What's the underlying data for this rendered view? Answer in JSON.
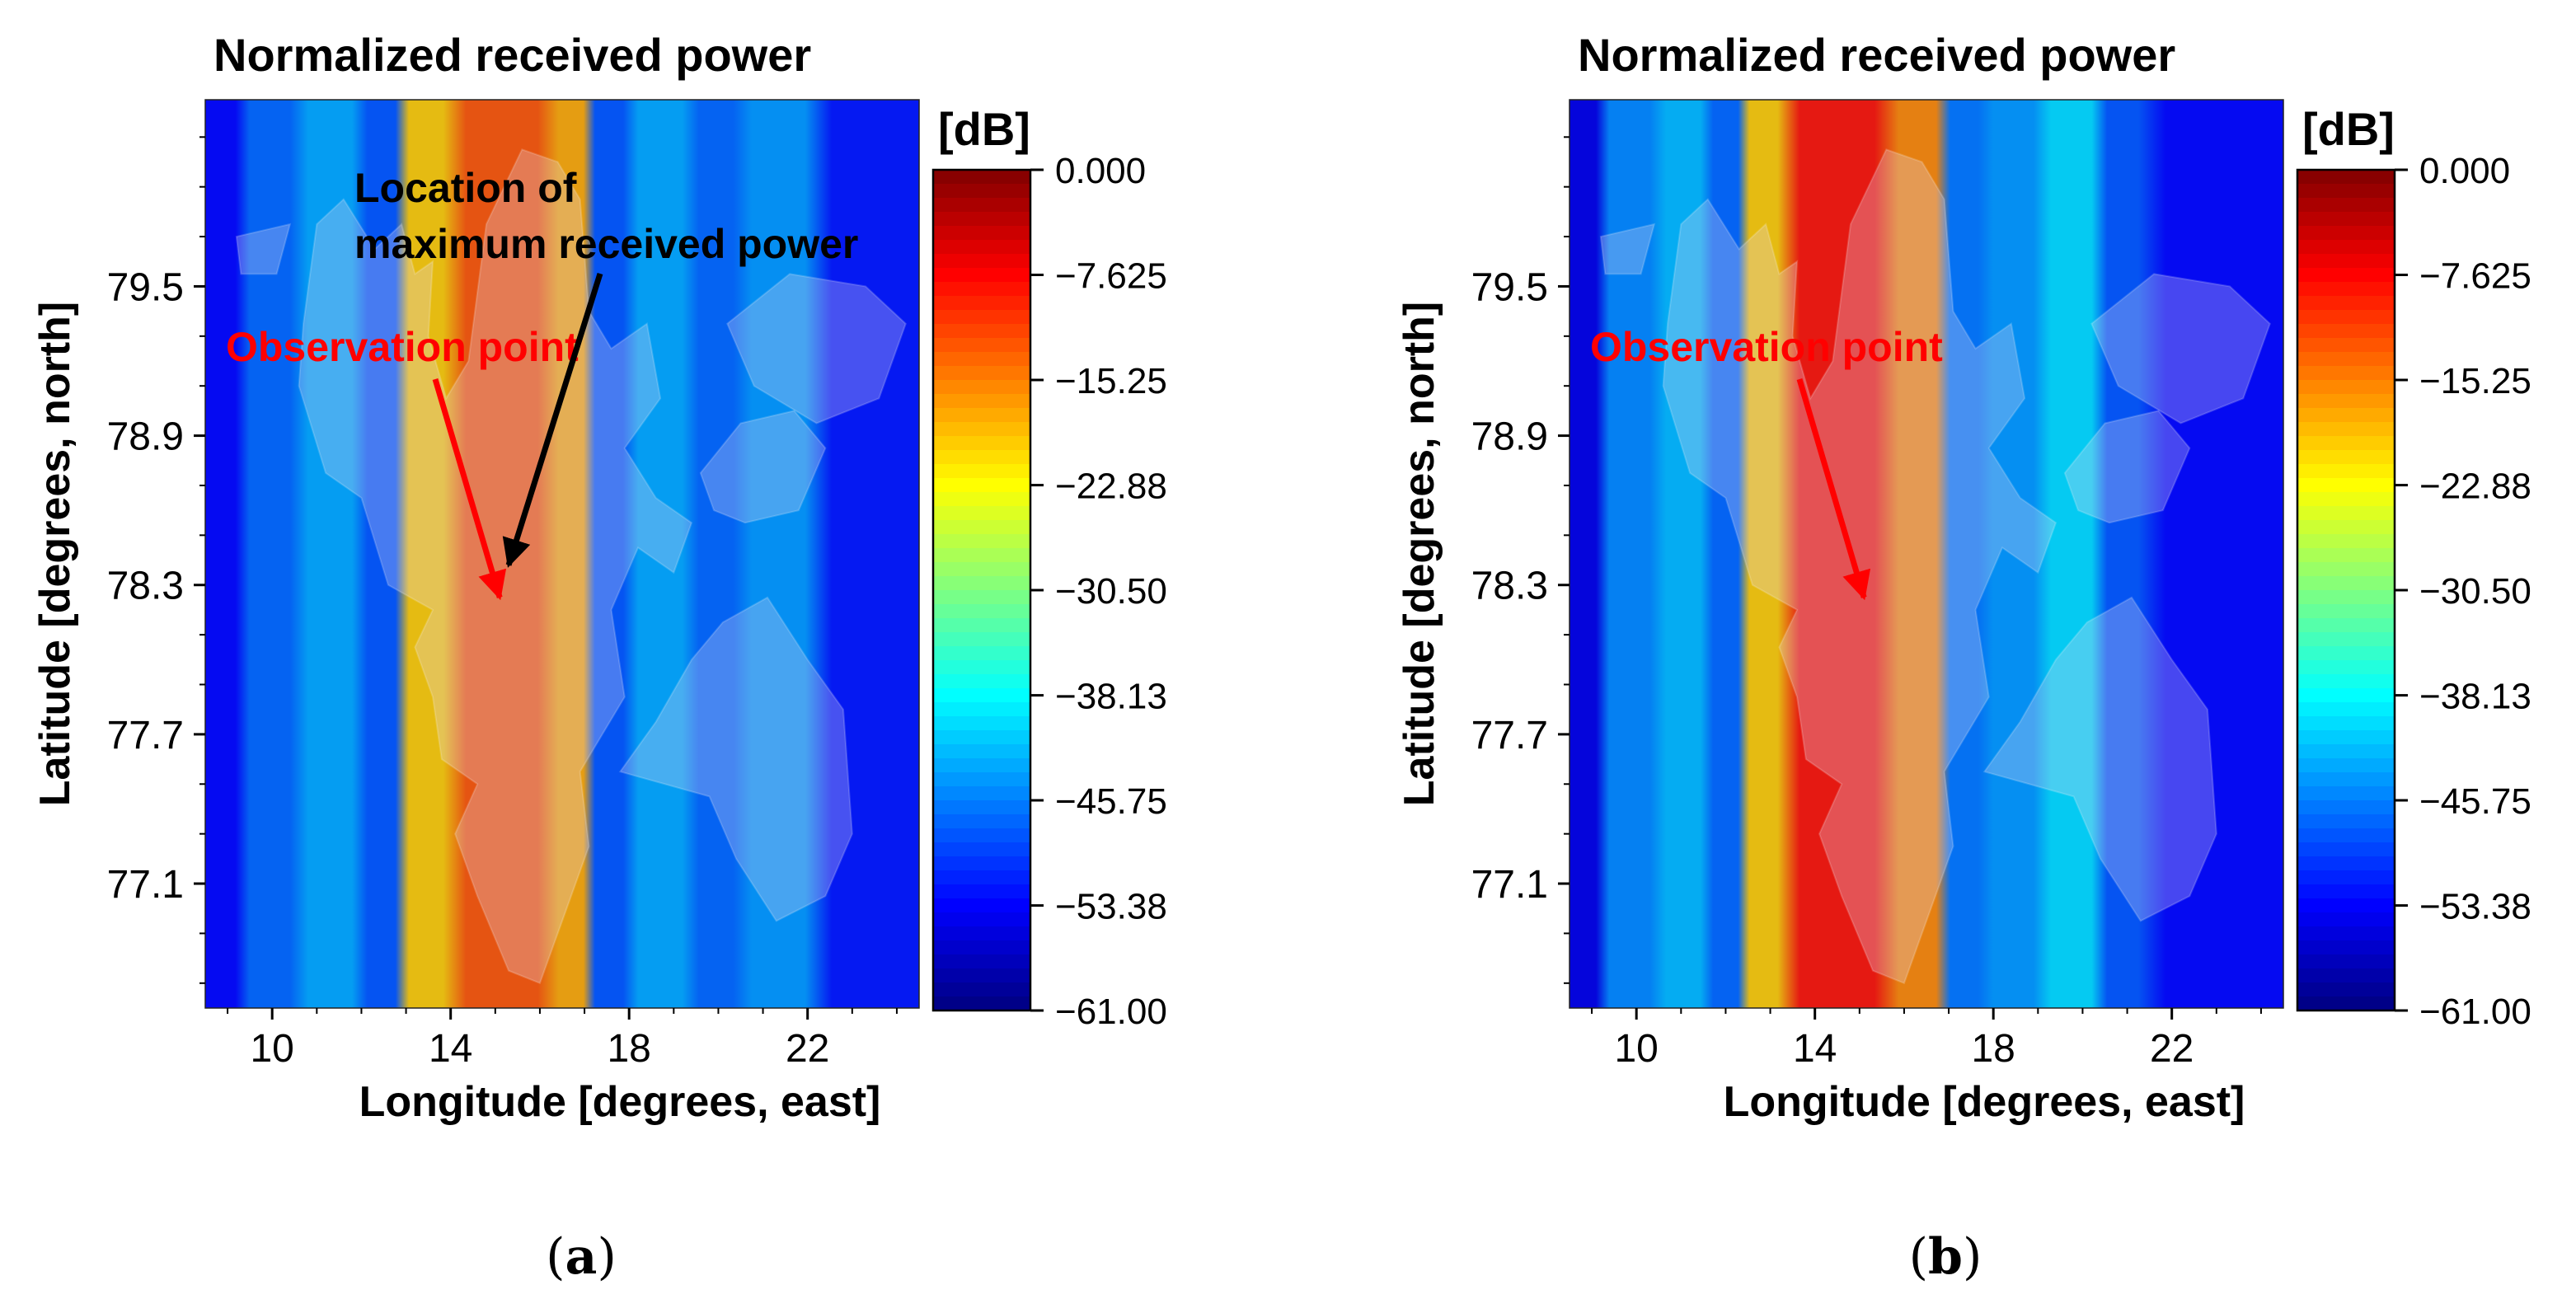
{
  "chart_data": [
    {
      "type": "heatmap",
      "panel_label": "(a)",
      "caption_open": "(",
      "caption_letter": "a",
      "caption_close": ")",
      "title": "Normalized received power",
      "xlabel": "Longitude [degrees, east]",
      "ylabel": "Latitude [degrees, north]",
      "xlim": [
        8.5,
        24.5
      ],
      "ylim": [
        76.6,
        80.25
      ],
      "xticks": [
        10,
        14,
        18,
        22
      ],
      "xtick_labels": [
        "10",
        "14",
        "18",
        "22"
      ],
      "yticks": [
        77.1,
        77.7,
        78.3,
        78.9,
        79.5
      ],
      "ytick_labels": [
        "77.1",
        "77.7",
        "78.3",
        "78.9",
        "79.5"
      ],
      "colorbar": {
        "unit": "[dB]",
        "min": -61.0,
        "max": 0.0,
        "ticks": [
          0.0,
          -7.625,
          -15.25,
          -22.88,
          -30.5,
          -38.13,
          -45.75,
          -53.38,
          -61.0
        ],
        "tick_labels": [
          "0.000",
          "−7.625",
          "−15.25",
          "−22.88",
          "−30.50",
          "−38.13",
          "−45.75",
          "−53.38",
          "−61.00"
        ]
      },
      "stripes_db": [
        {
          "lon_from": 8.5,
          "lon_to": 9.3,
          "db": -53
        },
        {
          "lon_from": 9.3,
          "lon_to": 10.6,
          "db": -47
        },
        {
          "lon_from": 10.6,
          "lon_to": 12.0,
          "db": -43
        },
        {
          "lon_from": 12.0,
          "lon_to": 12.9,
          "db": -48
        },
        {
          "lon_from": 12.9,
          "lon_to": 14.0,
          "db": -20
        },
        {
          "lon_from": 14.0,
          "lon_to": 16.3,
          "db": -13
        },
        {
          "lon_from": 16.3,
          "lon_to": 17.1,
          "db": -18
        },
        {
          "lon_from": 17.1,
          "lon_to": 18.0,
          "db": -48
        },
        {
          "lon_from": 18.0,
          "lon_to": 19.4,
          "db": -43
        },
        {
          "lon_from": 19.4,
          "lon_to": 20.5,
          "db": -47
        },
        {
          "lon_from": 20.5,
          "lon_to": 22.2,
          "db": -44
        },
        {
          "lon_from": 22.2,
          "lon_to": 24.5,
          "db": -52
        }
      ],
      "annotations": [
        {
          "name": "observation-point",
          "label": "Observation point",
          "color": "#ff0000",
          "lon": 15.1,
          "lat": 78.25
        },
        {
          "name": "max-power-location",
          "label_line1": "Location of",
          "label_line2": "maximum received power",
          "color": "#000000",
          "lon": 15.3,
          "lat": 78.38
        }
      ]
    },
    {
      "type": "heatmap",
      "panel_label": "(b)",
      "caption_open": "(",
      "caption_letter": "b",
      "caption_close": ")",
      "title": "Normalized received power",
      "xlabel": "Longitude [degrees, east]",
      "ylabel": "Latitude [degrees, north]",
      "xlim": [
        8.5,
        24.5
      ],
      "ylim": [
        76.6,
        80.25
      ],
      "xticks": [
        10,
        14,
        18,
        22
      ],
      "xtick_labels": [
        "10",
        "14",
        "18",
        "22"
      ],
      "yticks": [
        77.1,
        77.7,
        78.3,
        78.9,
        79.5
      ],
      "ytick_labels": [
        "77.1",
        "77.7",
        "78.3",
        "78.9",
        "79.5"
      ],
      "colorbar": {
        "unit": "[dB]",
        "min": -61.0,
        "max": 0.0,
        "ticks": [
          0.0,
          -7.625,
          -15.25,
          -22.88,
          -30.5,
          -38.13,
          -45.75,
          -53.38,
          -61.0
        ],
        "tick_labels": [
          "0.000",
          "−7.625",
          "−15.25",
          "−22.88",
          "−30.50",
          "−38.13",
          "−45.75",
          "−53.38",
          "−61.00"
        ]
      },
      "stripes_db": [
        {
          "lon_from": 8.5,
          "lon_to": 9.2,
          "db": -55
        },
        {
          "lon_from": 9.2,
          "lon_to": 10.5,
          "db": -45
        },
        {
          "lon_from": 10.5,
          "lon_to": 11.6,
          "db": -42
        },
        {
          "lon_from": 11.6,
          "lon_to": 12.4,
          "db": -47
        },
        {
          "lon_from": 12.4,
          "lon_to": 13.3,
          "db": -20
        },
        {
          "lon_from": 13.3,
          "lon_to": 15.7,
          "db": -9
        },
        {
          "lon_from": 15.7,
          "lon_to": 16.9,
          "db": -16
        },
        {
          "lon_from": 16.9,
          "lon_to": 17.8,
          "db": -46
        },
        {
          "lon_from": 17.8,
          "lon_to": 19.1,
          "db": -44
        },
        {
          "lon_from": 19.1,
          "lon_to": 20.4,
          "db": -40
        },
        {
          "lon_from": 20.4,
          "lon_to": 21.4,
          "db": -48
        },
        {
          "lon_from": 21.4,
          "lon_to": 24.5,
          "db": -53
        }
      ],
      "annotations": [
        {
          "name": "observation-point",
          "label": "Observation point",
          "color": "#ff0000",
          "lon": 15.1,
          "lat": 78.25
        }
      ]
    }
  ]
}
